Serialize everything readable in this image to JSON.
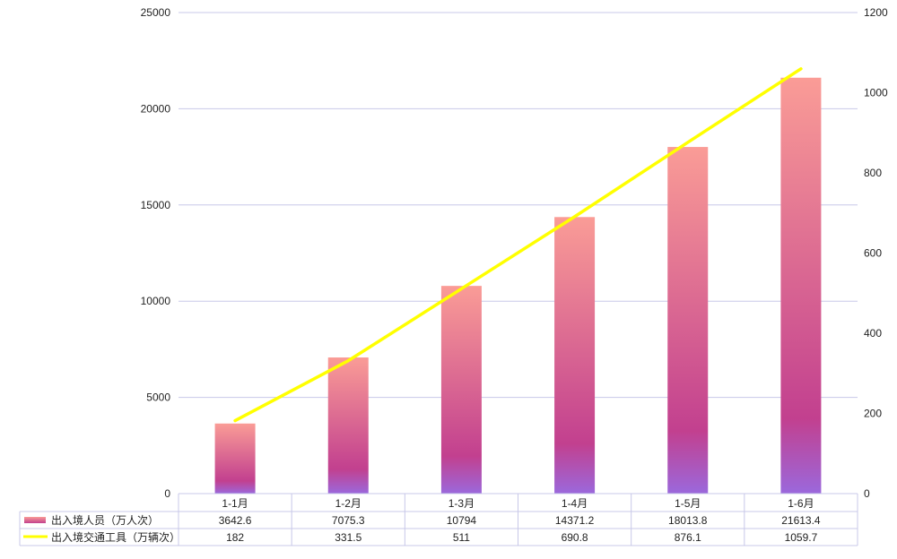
{
  "chart_data": {
    "type": "bar+line",
    "categories": [
      "1-1月",
      "1-2月",
      "1-3月",
      "1-4月",
      "1-5月",
      "1-6月"
    ],
    "series": [
      {
        "name": "出入境人员（万人次）",
        "type": "bar",
        "axis": "left",
        "values": [
          3642.6,
          7075.3,
          10794,
          14371.2,
          18013.8,
          21613.4
        ]
      },
      {
        "name": "出入境交通工具（万辆次）",
        "type": "line",
        "axis": "right",
        "values": [
          182,
          331.5,
          511,
          690.8,
          876.1,
          1059.7
        ]
      }
    ],
    "value_labels": [
      [
        "3642.6",
        "7075.3",
        "10794",
        "14371.2",
        "18013.8",
        "21613.4"
      ],
      [
        "182",
        "331.5",
        "511",
        "690.8",
        "876.1",
        "1059.7"
      ]
    ],
    "ylim_left": [
      0,
      25000
    ],
    "yticks_left": [
      "0",
      "5000",
      "10000",
      "15000",
      "20000",
      "25000"
    ],
    "ylim_right": [
      0,
      1200
    ],
    "yticks_right": [
      "0",
      "200",
      "400",
      "600",
      "800",
      "1000",
      "1200"
    ],
    "grid": true,
    "legend": "data-table-bottom",
    "colors": {
      "bar_top": "#fa9c96",
      "bar_mid": "#c2408f",
      "bar_bottom": "#9b68dc",
      "line": "#ffff00",
      "grid": "#c8c8e8",
      "table_border": "#c8c8e8"
    }
  }
}
